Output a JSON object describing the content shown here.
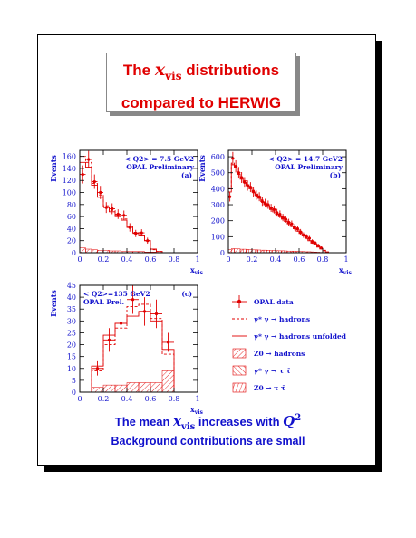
{
  "title": {
    "line1_pre": "The",
    "x_symbol": "x",
    "x_sub": "vis",
    "line1_post": "distributions",
    "line2": "compared to HERWIG"
  },
  "footer": {
    "line1_pre": "The mean",
    "x_symbol": "x",
    "x_sub": "vis",
    "line1_post": "increases with",
    "q_symbol": "Q",
    "q_sup": "2",
    "line2": "Background contributions are small"
  },
  "colors": {
    "accent": "#e00000",
    "text_blue": "#1111cc",
    "axis": "#000000"
  },
  "legend": [
    {
      "symbol": "data",
      "label": "OPAL data"
    },
    {
      "symbol": "dash",
      "label": "γ* γ → hadrons"
    },
    {
      "symbol": "solid",
      "label": "γ* γ → hadrons unfolded"
    },
    {
      "symbol": "hatch1",
      "label": "Z0 → hadrons"
    },
    {
      "symbol": "hatch2",
      "label": "γ* γ → τ τ̄"
    },
    {
      "symbol": "hatch3",
      "label": "Z0 → τ τ̄"
    }
  ],
  "chart_data": [
    {
      "type": "bar",
      "panel": "(a)",
      "annotation_line1": "< Q2> = 7.5 GeV2",
      "annotation_line2": "OPAL Preliminary",
      "ylabel": "Events",
      "xlabel": "xvis",
      "xlim": [
        0,
        1
      ],
      "ylim": [
        0,
        170
      ],
      "xticks": [
        0,
        0.2,
        0.4,
        0.6,
        0.8,
        1
      ],
      "xtick_labels": [
        "0",
        "0.2",
        "0.4",
        "0.6",
        "0.8",
        "1"
      ],
      "yticks": [
        0,
        20,
        40,
        60,
        80,
        100,
        120,
        140,
        160
      ],
      "ytick_labels": [
        "0",
        "20",
        "40",
        "60",
        "80",
        "100",
        "120",
        "140",
        "160"
      ],
      "bin_edges": [
        0,
        0.05,
        0.1,
        0.15,
        0.2,
        0.25,
        0.3,
        0.35,
        0.4,
        0.45,
        0.5,
        0.55,
        0.6,
        0.65,
        0.7
      ],
      "data": {
        "x": [
          0.025,
          0.075,
          0.125,
          0.175,
          0.225,
          0.275,
          0.325,
          0.375,
          0.425,
          0.475,
          0.525,
          0.575
        ],
        "y": [
          130,
          155,
          118,
          100,
          75,
          73,
          64,
          62,
          42,
          32,
          33,
          20
        ],
        "err": [
          15,
          14,
          12,
          11,
          9,
          9,
          8,
          8,
          7,
          6,
          6,
          5
        ]
      },
      "mc_dashed": [
        160,
        150,
        115,
        96,
        78,
        70,
        62,
        56,
        44,
        34,
        28,
        20,
        5,
        2
      ],
      "mc_solid": [
        150,
        142,
        112,
        92,
        76,
        68,
        60,
        54,
        42,
        33,
        28,
        20,
        6,
        2
      ],
      "bg_hatch": [
        8,
        6,
        5,
        4,
        4,
        3,
        3,
        2,
        2,
        2,
        2,
        1,
        1,
        0
      ]
    },
    {
      "type": "bar",
      "panel": "(b)",
      "annotation_line1": "< Q2> = 14.7 GeV2",
      "annotation_line2": "OPAL Preliminary",
      "ylabel": "Events",
      "xlabel": "xvis",
      "xlim": [
        0,
        1
      ],
      "ylim": [
        0,
        640
      ],
      "xticks": [
        0,
        0.2,
        0.4,
        0.6,
        0.8,
        1
      ],
      "xtick_labels": [
        "0",
        "0.2",
        "0.4",
        "0.6",
        "0.8",
        "1"
      ],
      "yticks": [
        0,
        100,
        200,
        300,
        400,
        500,
        600
      ],
      "ytick_labels": [
        "0",
        "100",
        "200",
        "300",
        "400",
        "500",
        "600"
      ],
      "bin_edges": [
        0,
        0.025,
        0.05,
        0.075,
        0.1,
        0.125,
        0.15,
        0.175,
        0.2,
        0.225,
        0.25,
        0.275,
        0.3,
        0.325,
        0.35,
        0.375,
        0.4,
        0.425,
        0.45,
        0.475,
        0.5,
        0.525,
        0.55,
        0.575,
        0.6,
        0.625,
        0.65,
        0.675,
        0.7,
        0.725,
        0.75,
        0.775,
        0.8,
        0.825,
        0.85
      ],
      "data": {
        "x": [
          0.0125,
          0.0375,
          0.0625,
          0.0875,
          0.1125,
          0.1375,
          0.1625,
          0.1875,
          0.2125,
          0.2375,
          0.2625,
          0.2875,
          0.3125,
          0.3375,
          0.3625,
          0.3875,
          0.4125,
          0.4375,
          0.4625,
          0.4875,
          0.5125,
          0.5375,
          0.5625,
          0.5875,
          0.6125,
          0.6375,
          0.6625,
          0.6875,
          0.7125,
          0.7375,
          0.7625,
          0.7875
        ],
        "y": [
          350,
          590,
          540,
          500,
          470,
          440,
          420,
          410,
          380,
          360,
          350,
          320,
          310,
          300,
          280,
          270,
          250,
          240,
          220,
          210,
          190,
          180,
          160,
          150,
          130,
          110,
          100,
          90,
          70,
          60,
          45,
          30
        ],
        "err": [
          30,
          40,
          38,
          36,
          34,
          33,
          32,
          31,
          30,
          29,
          28,
          27,
          27,
          26,
          25,
          25,
          24,
          24,
          23,
          22,
          22,
          21,
          20,
          19,
          18,
          17,
          16,
          15,
          14,
          13,
          11,
          9
        ]
      },
      "mc_dashed": [
        400,
        560,
        540,
        500,
        470,
        450,
        430,
        410,
        390,
        370,
        350,
        330,
        310,
        295,
        280,
        265,
        250,
        235,
        220,
        205,
        190,
        175,
        160,
        145,
        130,
        115,
        100,
        85,
        70,
        55,
        40,
        28,
        15,
        5
      ],
      "mc_solid": [
        380,
        550,
        530,
        490,
        460,
        440,
        420,
        400,
        380,
        360,
        340,
        320,
        300,
        285,
        270,
        255,
        240,
        225,
        210,
        195,
        180,
        165,
        150,
        135,
        120,
        105,
        90,
        75,
        60,
        48,
        35,
        24,
        12,
        4
      ],
      "bg_hatch": [
        20,
        25,
        25,
        24,
        22,
        22,
        20,
        20,
        18,
        18,
        17,
        16,
        16,
        15,
        14,
        14,
        13,
        12,
        12,
        11,
        10,
        10,
        9,
        9,
        8,
        7,
        6,
        6,
        5,
        4,
        3,
        2,
        1,
        0
      ]
    },
    {
      "type": "bar",
      "panel": "(c)",
      "annotation_line1": "< Q2>=135 GeV2",
      "annotation_line2": "OPAL Prel.",
      "ylabel": "Events",
      "xlabel": "xvis",
      "xlim": [
        0,
        1
      ],
      "ylim": [
        0,
        45
      ],
      "xticks": [
        0,
        0.2,
        0.4,
        0.6,
        0.8,
        1
      ],
      "xtick_labels": [
        "0",
        "0.2",
        "0.4",
        "0.6",
        "0.8",
        "1"
      ],
      "yticks": [
        0,
        5,
        10,
        15,
        20,
        25,
        30,
        35,
        40,
        45
      ],
      "ytick_labels": [
        "0",
        "5",
        "10",
        "15",
        "20",
        "25",
        "30",
        "35",
        "40",
        "45"
      ],
      "bin_edges": [
        0,
        0.1,
        0.2,
        0.3,
        0.4,
        0.5,
        0.6,
        0.7,
        0.8
      ],
      "data": {
        "x": [
          0.15,
          0.25,
          0.35,
          0.45,
          0.55,
          0.65,
          0.75
        ],
        "y": [
          10,
          22,
          29,
          39,
          34,
          33,
          21
        ],
        "err": [
          3,
          5,
          5,
          6,
          6,
          6,
          4
        ]
      },
      "mc_dashed": [
        0,
        9,
        20,
        27,
        36,
        37,
        31,
        16
      ],
      "mc_solid": [
        0,
        11,
        24,
        29,
        32,
        34,
        30,
        18
      ],
      "bg_hatch": [
        0,
        2,
        3,
        3,
        4,
        4,
        4,
        9
      ]
    }
  ]
}
